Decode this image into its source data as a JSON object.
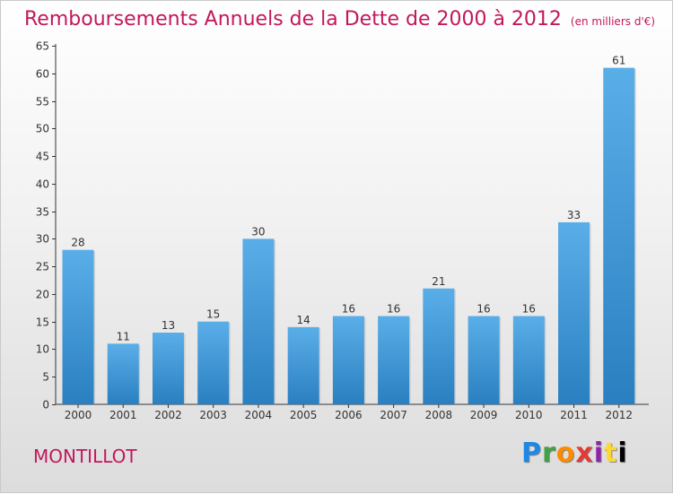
{
  "chart_data": {
    "type": "bar",
    "title": "Remboursements Annuels de la Dette de 2000 à 2012",
    "subtitle": "(en milliers d'€)",
    "categories": [
      "2000",
      "2001",
      "2002",
      "2003",
      "2004",
      "2005",
      "2006",
      "2007",
      "2008",
      "2009",
      "2010",
      "2011",
      "2012"
    ],
    "values": [
      28,
      11,
      13,
      15,
      30,
      14,
      16,
      16,
      21,
      16,
      16,
      33,
      61
    ],
    "ylim": [
      0,
      65
    ],
    "yticks": [
      0,
      5,
      10,
      15,
      20,
      25,
      30,
      35,
      40,
      45,
      50,
      55,
      60,
      65
    ],
    "grid": false,
    "bar_color": "#3f97d9"
  },
  "commune": "MONTILLOT",
  "logo_text": "Proxiti",
  "colors": {
    "title": "#c2185b",
    "bar_top": "#5aaee8",
    "bar_bottom": "#2a7fc0"
  }
}
